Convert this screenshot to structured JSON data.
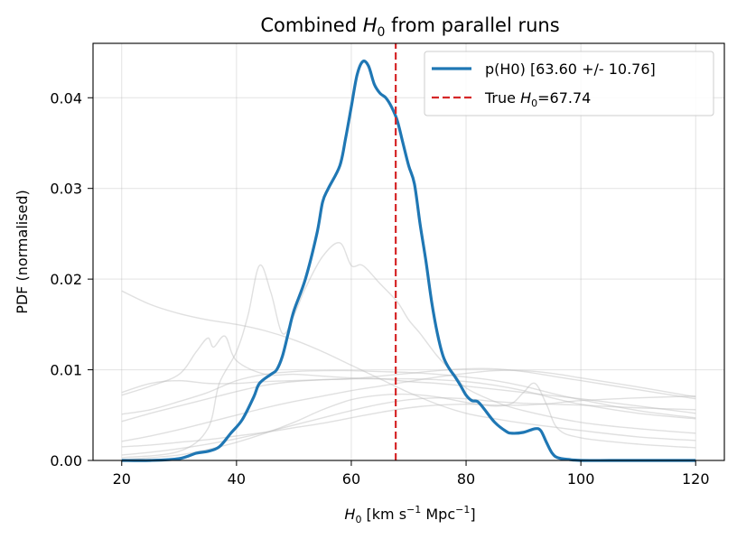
{
  "chart_data": {
    "type": "line",
    "title": "Combined H0 from parallel runs",
    "title_parts": {
      "prefix": "Combined ",
      "symbol": "H",
      "subscript": "0",
      "suffix": " from parallel runs"
    },
    "xlabel": "H0 [km s^-1 Mpc^-1]",
    "xlabel_parts": {
      "symbol": "H",
      "subscript": "0",
      "unit_prefix": " [km s",
      "exp1": "−1",
      "unit_mid": " Mpc",
      "exp2": "−1",
      "unit_suffix": "]"
    },
    "ylabel": "PDF (normalised)",
    "xlim": [
      15,
      125
    ],
    "ylim": [
      0,
      0.046
    ],
    "xticks": [
      20,
      40,
      60,
      80,
      100,
      120
    ],
    "xtick_labels": [
      "20",
      "40",
      "60",
      "80",
      "100",
      "120"
    ],
    "yticks": [
      0,
      0.01,
      0.02,
      0.03,
      0.04
    ],
    "ytick_labels": [
      "0.00",
      "0.01",
      "0.02",
      "0.03",
      "0.04"
    ],
    "grid": true,
    "legend_position": "top-right",
    "colors": {
      "combined": "#1f77b4",
      "truth": "#d62728",
      "runs": "#bbbbbb"
    },
    "series": [
      {
        "name": "p(H0) [63.60 +/- 10.76]",
        "role": "combined",
        "x": [
          20,
          25,
          30,
          33,
          35,
          37,
          39,
          41,
          43,
          44,
          46,
          47,
          48,
          49,
          50,
          52,
          54,
          55,
          56,
          58,
          59,
          60,
          61,
          62,
          63,
          64,
          65,
          66,
          67,
          68,
          69,
          70,
          71,
          72,
          73,
          74,
          75,
          76,
          77,
          78,
          79,
          80,
          81,
          82,
          83,
          85,
          87,
          88,
          90,
          92,
          93,
          94,
          95,
          96,
          98,
          100,
          105,
          110,
          120
        ],
        "values": [
          0.0,
          0.0,
          0.0002,
          0.0008,
          0.001,
          0.0015,
          0.003,
          0.0045,
          0.007,
          0.0085,
          0.0095,
          0.01,
          0.0115,
          0.014,
          0.0165,
          0.02,
          0.025,
          0.0285,
          0.03,
          0.0325,
          0.0355,
          0.039,
          0.0425,
          0.044,
          0.0435,
          0.0415,
          0.0405,
          0.04,
          0.039,
          0.0375,
          0.035,
          0.0325,
          0.0305,
          0.026,
          0.022,
          0.0175,
          0.014,
          0.0115,
          0.0102,
          0.0093,
          0.0083,
          0.0072,
          0.0066,
          0.0065,
          0.0058,
          0.0042,
          0.0032,
          0.003,
          0.0031,
          0.0035,
          0.0033,
          0.002,
          0.0008,
          0.0003,
          0.0001,
          0.0,
          0.0,
          0.0,
          0.0
        ]
      },
      {
        "name": "True H0=67.74",
        "legend_parts": {
          "prefix": "True ",
          "symbol": "H",
          "subscript": "0",
          "suffix": "=67.74"
        },
        "role": "truth",
        "x": [
          67.74,
          67.74
        ],
        "values": [
          0,
          0.046
        ]
      }
    ],
    "background_runs": [
      {
        "x": [
          20,
          25,
          30,
          35,
          40,
          45,
          50,
          55,
          60,
          65,
          70,
          75,
          80,
          85,
          90,
          95,
          100,
          110,
          120
        ],
        "values": [
          0.0187,
          0.0172,
          0.0162,
          0.0155,
          0.015,
          0.0143,
          0.0133,
          0.012,
          0.0105,
          0.009,
          0.0075,
          0.0062,
          0.0052,
          0.0046,
          0.0041,
          0.0037,
          0.0033,
          0.0026,
          0.0022
        ]
      },
      {
        "x": [
          20,
          30,
          35,
          37,
          40,
          42,
          44,
          46,
          48,
          50,
          52,
          55,
          58,
          60,
          62,
          65,
          68,
          70,
          72,
          75,
          78,
          80,
          85,
          90,
          100,
          110,
          120
        ],
        "values": [
          0.0003,
          0.001,
          0.0035,
          0.0085,
          0.012,
          0.016,
          0.0215,
          0.0185,
          0.014,
          0.016,
          0.019,
          0.0225,
          0.024,
          0.0215,
          0.0215,
          0.0195,
          0.0175,
          0.0155,
          0.014,
          0.0115,
          0.0095,
          0.008,
          0.0065,
          0.0055,
          0.0042,
          0.0035,
          0.003
        ]
      },
      {
        "x": [
          20,
          25,
          30,
          33,
          35,
          36,
          38,
          40,
          45,
          50,
          55,
          60,
          65,
          70,
          75,
          80,
          90,
          100,
          110,
          120
        ],
        "values": [
          0.0072,
          0.0082,
          0.0095,
          0.012,
          0.0135,
          0.0125,
          0.0137,
          0.011,
          0.0095,
          0.0095,
          0.0093,
          0.0091,
          0.009,
          0.0087,
          0.0085,
          0.0082,
          0.0075,
          0.0068,
          0.006,
          0.0052
        ]
      },
      {
        "x": [
          20,
          25,
          30,
          35,
          40,
          45,
          50,
          55,
          60,
          65,
          70,
          75,
          80,
          85,
          90,
          95,
          100,
          110,
          120
        ],
        "values": [
          0.0075,
          0.0085,
          0.0088,
          0.0085,
          0.0085,
          0.0087,
          0.0088,
          0.0089,
          0.009,
          0.0093,
          0.0096,
          0.0099,
          0.0101,
          0.0101,
          0.0098,
          0.0093,
          0.0088,
          0.0078,
          0.0068
        ]
      },
      {
        "x": [
          20,
          25,
          30,
          35,
          40,
          45,
          50,
          55,
          60,
          65,
          70,
          75,
          80,
          85,
          90,
          95,
          100,
          110,
          120
        ],
        "values": [
          0.0051,
          0.0056,
          0.0065,
          0.0075,
          0.0088,
          0.0095,
          0.0098,
          0.0099,
          0.0099,
          0.0098,
          0.0097,
          0.0095,
          0.0092,
          0.0088,
          0.0082,
          0.0074,
          0.0067,
          0.0055,
          0.0047
        ]
      },
      {
        "x": [
          20,
          25,
          30,
          35,
          40,
          45,
          50,
          55,
          60,
          65,
          70,
          75,
          80,
          85,
          90,
          95,
          100,
          110,
          120
        ],
        "values": [
          0.0043,
          0.0052,
          0.006,
          0.0068,
          0.0076,
          0.0083,
          0.0087,
          0.0089,
          0.009,
          0.009,
          0.009,
          0.0089,
          0.0087,
          0.0083,
          0.0077,
          0.0069,
          0.0062,
          0.0052,
          0.0046
        ]
      },
      {
        "x": [
          20,
          25,
          30,
          35,
          40,
          45,
          50,
          55,
          60,
          65,
          70,
          75,
          80,
          85,
          90,
          95,
          100,
          110,
          120
        ],
        "values": [
          0.0021,
          0.0027,
          0.0034,
          0.0042,
          0.005,
          0.0058,
          0.0065,
          0.0071,
          0.0077,
          0.0082,
          0.0087,
          0.0092,
          0.0096,
          0.0099,
          0.0099,
          0.0096,
          0.0091,
          0.0081,
          0.007
        ]
      },
      {
        "x": [
          20,
          25,
          30,
          35,
          40,
          45,
          50,
          55,
          60,
          65,
          70,
          75,
          80,
          85,
          90,
          95,
          100,
          110,
          120
        ],
        "values": [
          0.0015,
          0.0017,
          0.002,
          0.0023,
          0.0027,
          0.0031,
          0.0036,
          0.0041,
          0.0047,
          0.0053,
          0.0058,
          0.0061,
          0.0062,
          0.0061,
          0.0061,
          0.0063,
          0.0066,
          0.0069,
          0.0071
        ]
      },
      {
        "x": [
          20,
          25,
          30,
          35,
          40,
          45,
          50,
          55,
          60,
          65,
          70,
          75,
          80,
          85,
          90,
          95,
          100,
          110,
          120
        ],
        "values": [
          0.0006,
          0.0009,
          0.0013,
          0.0018,
          0.0024,
          0.0031,
          0.0039,
          0.0047,
          0.0055,
          0.0062,
          0.0067,
          0.0069,
          0.0068,
          0.0065,
          0.0063,
          0.0062,
          0.0061,
          0.0058,
          0.0056
        ]
      },
      {
        "x": [
          20,
          25,
          30,
          35,
          40,
          45,
          50,
          55,
          60,
          65,
          70,
          75,
          80,
          85,
          88,
          90,
          92,
          94,
          96,
          100,
          110,
          120
        ],
        "values": [
          0.0001,
          0.0003,
          0.0006,
          0.0012,
          0.002,
          0.003,
          0.0042,
          0.0056,
          0.0067,
          0.0072,
          0.0073,
          0.007,
          0.0064,
          0.006,
          0.0063,
          0.0075,
          0.0085,
          0.0062,
          0.0035,
          0.0025,
          0.0018,
          0.0014
        ]
      }
    ]
  }
}
